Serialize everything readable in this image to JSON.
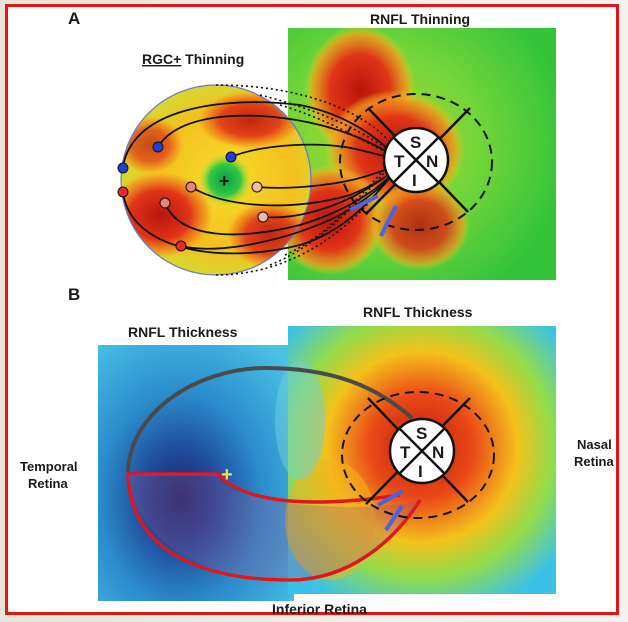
{
  "panel_a": {
    "label": "A",
    "rnfl_title": "RNFL Thinning",
    "rgc_title_underlined": "RGC+",
    "rgc_title_rest": " Thinning"
  },
  "panel_b": {
    "label": "B",
    "rnfl_left_title": "RNFL Thickness",
    "rnfl_right_title": "RNFL Thickness",
    "temporal_line1": "Temporal",
    "temporal_line2": "Retina",
    "nasal_line1": "Nasal",
    "nasal_line2": "Retina",
    "inferior_label": "Inferior Retina"
  },
  "optic_disc": {
    "S": "S",
    "T": "T",
    "N": "N",
    "I": "I"
  },
  "fovea_marker": "+",
  "colors": {
    "frame": "#e0161b",
    "thinning_red": "#d42a18",
    "thinning_green": "#28c83c",
    "thickness_blue": "#2fa3d6",
    "dot_blue": "#1f3fd6",
    "dot_red": "#e32b2b",
    "tick_blue": "#4a63e0",
    "outline_gray": "#4a4a4a",
    "outline_red": "#e3151b"
  }
}
